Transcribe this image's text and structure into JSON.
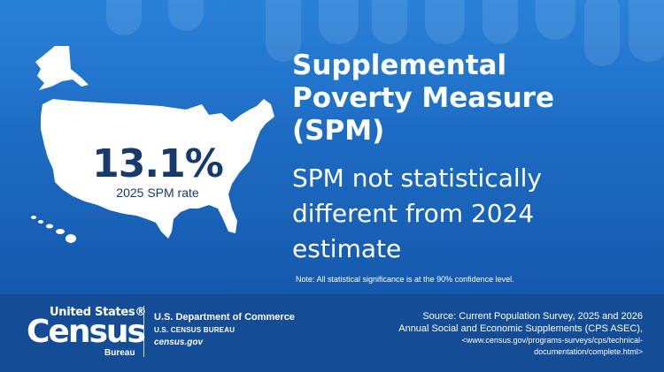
{
  "stat": {
    "value": "13.1%",
    "label": "2025 SPM rate"
  },
  "title": {
    "line1": "Supplemental",
    "line2": "Poverty Measure",
    "line3": "(SPM)"
  },
  "subtitle": {
    "line1": "SPM not statistically",
    "line2": "different from 2024",
    "line3": "estimate"
  },
  "note": "Note: All statistical significance is at the 90% confidence level.",
  "logo": {
    "top": "United States®",
    "main": "Census",
    "sub": "Bureau"
  },
  "department": {
    "name": "U.S. Department of Commerce",
    "bureau": "U.S. CENSUS BUREAU",
    "site": "census.gov"
  },
  "source": {
    "line1": "Source: Current Population Survey, 2025 and 2026",
    "line2": "Annual Social and Economic Supplements (CPS ASEC),",
    "line3": "<www.census.gov/programs-surveys/cps/technical-",
    "line4": "documentation/complete.html>"
  },
  "colors": {
    "background_blue": "#1a63b8",
    "footer_blue": "#144c96",
    "stat_navy": "#153a6b",
    "text_white": "#ffffff"
  },
  "icons": [
    "us-map-icon"
  ]
}
